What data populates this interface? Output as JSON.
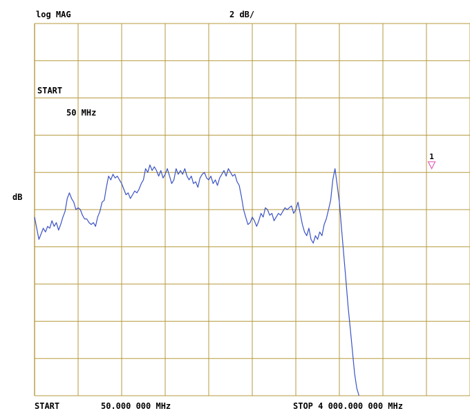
{
  "header": {
    "format": "log MAG",
    "scale": "2 dB/"
  },
  "annotations": {
    "start_label": "START",
    "start_value": "50 MHz",
    "y_unit": "dB"
  },
  "footer": {
    "start_label": "START",
    "start_freq": "50.000 000 MHz",
    "stop_label": "STOP 4 000.000 000 MHz"
  },
  "chart_data": {
    "type": "line",
    "xlabel": "",
    "ylabel": "dB",
    "x_start_mhz": 50,
    "x_stop_mhz": 4000,
    "y_divisions": 10,
    "x_divisions": 10,
    "y_units_per_division": 2,
    "grid": true,
    "colors": {
      "grid": "#b59a3c",
      "trace": "#3a52c4",
      "marker": "#e060c0"
    },
    "marker": {
      "label": "1",
      "x_div": 9.12,
      "y_div": 6.1
    },
    "trace_div": [
      [
        0.0,
        4.8
      ],
      [
        0.05,
        4.5
      ],
      [
        0.1,
        4.2
      ],
      [
        0.15,
        4.35
      ],
      [
        0.2,
        4.5
      ],
      [
        0.25,
        4.4
      ],
      [
        0.3,
        4.55
      ],
      [
        0.35,
        4.5
      ],
      [
        0.4,
        4.7
      ],
      [
        0.45,
        4.55
      ],
      [
        0.5,
        4.65
      ],
      [
        0.55,
        4.45
      ],
      [
        0.6,
        4.6
      ],
      [
        0.65,
        4.8
      ],
      [
        0.7,
        4.95
      ],
      [
        0.75,
        5.3
      ],
      [
        0.8,
        5.45
      ],
      [
        0.85,
        5.3
      ],
      [
        0.9,
        5.2
      ],
      [
        0.95,
        5.0
      ],
      [
        1.0,
        5.05
      ],
      [
        1.05,
        5.0
      ],
      [
        1.1,
        4.85
      ],
      [
        1.15,
        4.75
      ],
      [
        1.2,
        4.75
      ],
      [
        1.25,
        4.65
      ],
      [
        1.3,
        4.6
      ],
      [
        1.35,
        4.65
      ],
      [
        1.4,
        4.55
      ],
      [
        1.45,
        4.8
      ],
      [
        1.5,
        4.95
      ],
      [
        1.55,
        5.2
      ],
      [
        1.6,
        5.25
      ],
      [
        1.65,
        5.6
      ],
      [
        1.7,
        5.9
      ],
      [
        1.75,
        5.8
      ],
      [
        1.8,
        5.95
      ],
      [
        1.85,
        5.85
      ],
      [
        1.9,
        5.9
      ],
      [
        1.95,
        5.8
      ],
      [
        2.0,
        5.7
      ],
      [
        2.05,
        5.55
      ],
      [
        2.1,
        5.4
      ],
      [
        2.15,
        5.45
      ],
      [
        2.2,
        5.3
      ],
      [
        2.25,
        5.4
      ],
      [
        2.3,
        5.5
      ],
      [
        2.35,
        5.45
      ],
      [
        2.4,
        5.55
      ],
      [
        2.45,
        5.7
      ],
      [
        2.5,
        5.8
      ],
      [
        2.55,
        6.1
      ],
      [
        2.6,
        6.0
      ],
      [
        2.65,
        6.2
      ],
      [
        2.7,
        6.05
      ],
      [
        2.75,
        6.15
      ],
      [
        2.8,
        6.05
      ],
      [
        2.85,
        5.9
      ],
      [
        2.9,
        6.05
      ],
      [
        2.95,
        5.85
      ],
      [
        3.0,
        5.95
      ],
      [
        3.05,
        6.1
      ],
      [
        3.1,
        5.9
      ],
      [
        3.15,
        5.7
      ],
      [
        3.2,
        5.8
      ],
      [
        3.25,
        6.1
      ],
      [
        3.3,
        5.95
      ],
      [
        3.35,
        6.05
      ],
      [
        3.4,
        5.95
      ],
      [
        3.45,
        6.1
      ],
      [
        3.5,
        5.9
      ],
      [
        3.55,
        5.8
      ],
      [
        3.6,
        5.9
      ],
      [
        3.65,
        5.7
      ],
      [
        3.7,
        5.75
      ],
      [
        3.75,
        5.6
      ],
      [
        3.8,
        5.85
      ],
      [
        3.85,
        5.95
      ],
      [
        3.9,
        6.0
      ],
      [
        3.95,
        5.85
      ],
      [
        4.0,
        5.8
      ],
      [
        4.05,
        5.9
      ],
      [
        4.1,
        5.7
      ],
      [
        4.15,
        5.8
      ],
      [
        4.2,
        5.65
      ],
      [
        4.25,
        5.85
      ],
      [
        4.3,
        5.95
      ],
      [
        4.35,
        6.05
      ],
      [
        4.4,
        5.9
      ],
      [
        4.45,
        6.1
      ],
      [
        4.5,
        6.0
      ],
      [
        4.55,
        5.9
      ],
      [
        4.6,
        5.95
      ],
      [
        4.65,
        5.75
      ],
      [
        4.7,
        5.65
      ],
      [
        4.75,
        5.35
      ],
      [
        4.8,
        5.0
      ],
      [
        4.85,
        4.8
      ],
      [
        4.9,
        4.6
      ],
      [
        4.95,
        4.65
      ],
      [
        5.0,
        4.8
      ],
      [
        5.05,
        4.7
      ],
      [
        5.1,
        4.55
      ],
      [
        5.15,
        4.7
      ],
      [
        5.2,
        4.9
      ],
      [
        5.25,
        4.8
      ],
      [
        5.3,
        5.05
      ],
      [
        5.35,
        5.0
      ],
      [
        5.4,
        4.85
      ],
      [
        5.45,
        4.9
      ],
      [
        5.5,
        4.7
      ],
      [
        5.55,
        4.8
      ],
      [
        5.6,
        4.9
      ],
      [
        5.65,
        4.85
      ],
      [
        5.7,
        4.95
      ],
      [
        5.75,
        5.05
      ],
      [
        5.8,
        5.0
      ],
      [
        5.85,
        5.05
      ],
      [
        5.9,
        5.1
      ],
      [
        5.95,
        4.9
      ],
      [
        6.0,
        5.0
      ],
      [
        6.05,
        5.2
      ],
      [
        6.1,
        4.9
      ],
      [
        6.15,
        4.6
      ],
      [
        6.2,
        4.4
      ],
      [
        6.25,
        4.3
      ],
      [
        6.3,
        4.5
      ],
      [
        6.35,
        4.2
      ],
      [
        6.4,
        4.1
      ],
      [
        6.45,
        4.3
      ],
      [
        6.5,
        4.2
      ],
      [
        6.55,
        4.4
      ],
      [
        6.6,
        4.3
      ],
      [
        6.65,
        4.6
      ],
      [
        6.7,
        4.75
      ],
      [
        6.75,
        5.0
      ],
      [
        6.8,
        5.25
      ],
      [
        6.85,
        5.8
      ],
      [
        6.9,
        6.1
      ],
      [
        6.95,
        5.65
      ],
      [
        7.0,
        5.2
      ],
      [
        7.05,
        4.5
      ],
      [
        7.1,
        3.8
      ],
      [
        7.15,
        3.1
      ],
      [
        7.2,
        2.4
      ],
      [
        7.25,
        1.8
      ],
      [
        7.3,
        1.2
      ],
      [
        7.35,
        0.6
      ],
      [
        7.4,
        0.2
      ],
      [
        7.45,
        0.0
      ]
    ]
  }
}
